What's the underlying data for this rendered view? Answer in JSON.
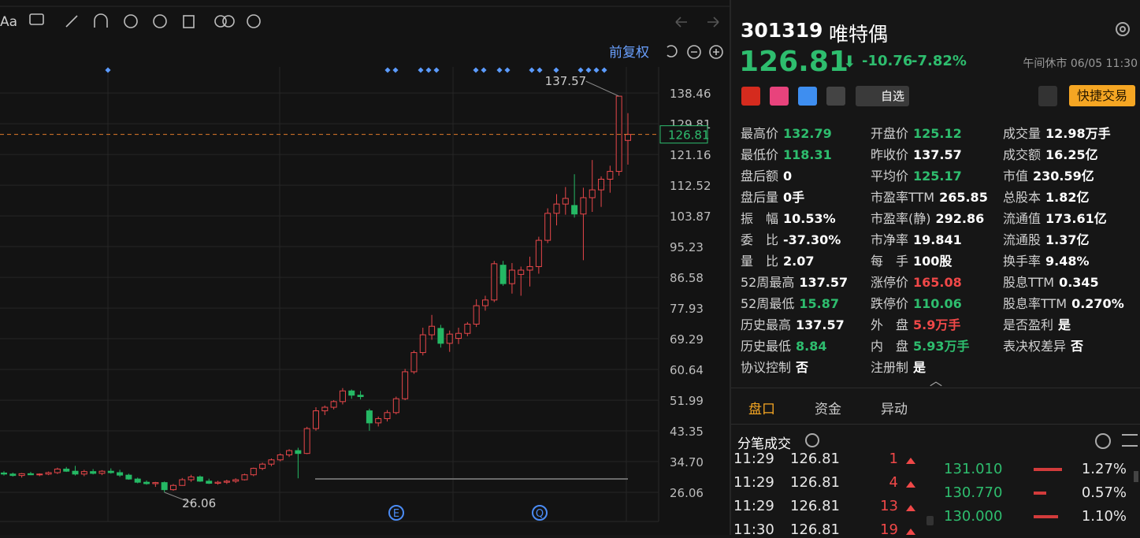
{
  "toolbar": {
    "font_button": "Aa",
    "adjust": "前复权"
  },
  "chart": {
    "type": "candlestick",
    "ylim": [
      18.3,
      145.8
    ],
    "yticks": [
      138.46,
      129.81,
      121.16,
      112.52,
      103.87,
      95.23,
      86.58,
      77.93,
      69.29,
      60.64,
      51.99,
      43.35,
      {
        "value": 34.7,
        "label": "34.70"
      },
      26.06
    ],
    "last": {
      "value": 126.81,
      "label": "126.81"
    },
    "annotations": [
      {
        "value": 137.57,
        "label": "137.57"
      },
      {
        "value": 26.06,
        "label": "26.06"
      }
    ],
    "events": [
      "E",
      "Q"
    ],
    "up_color": "#e8474a",
    "down_color": "#25b864",
    "candles": [
      [
        31.5,
        32,
        30.8,
        31.2
      ],
      [
        31.2,
        31.6,
        30.5,
        30.8
      ],
      [
        30.8,
        31.5,
        30.2,
        31.3
      ],
      [
        31.3,
        31.8,
        30.9,
        31
      ],
      [
        31,
        31.4,
        30.6,
        31.2
      ],
      [
        31.2,
        31.9,
        30.9,
        31.6
      ],
      [
        31.6,
        33,
        31.2,
        32.6
      ],
      [
        32.6,
        33.2,
        31.8,
        32
      ],
      [
        32,
        33.5,
        30.8,
        31.2
      ],
      [
        31.2,
        32.4,
        30.6,
        31.9
      ],
      [
        31.9,
        32.6,
        31.1,
        31.4
      ],
      [
        31.4,
        32.3,
        30.9,
        32
      ],
      [
        32,
        32.8,
        31.3,
        31.6
      ],
      [
        31.6,
        32.4,
        30.4,
        30.9
      ],
      [
        30.9,
        31.3,
        29.6,
        29.8
      ],
      [
        29.8,
        30.2,
        28.6,
        28.9
      ],
      [
        28.9,
        29.4,
        28.2,
        28.5
      ],
      [
        28.5,
        29,
        27.6,
        28.8
      ],
      [
        28.8,
        29.1,
        26.06,
        26.8
      ],
      [
        26.8,
        28.4,
        26.5,
        28
      ],
      [
        28,
        30.1,
        27.9,
        29.6
      ],
      [
        29.6,
        31,
        29,
        30.4
      ],
      [
        30.4,
        30.8,
        29,
        29.2
      ],
      [
        29.2,
        29.9,
        28.4,
        28.6
      ],
      [
        28.6,
        29.3,
        28.2,
        28.9
      ],
      [
        28.9,
        29.6,
        28.4,
        29.2
      ],
      [
        29.2,
        30,
        28.7,
        29.6
      ],
      [
        29.6,
        31.3,
        29.4,
        31
      ],
      [
        31,
        33,
        30.6,
        32.8
      ],
      [
        32.8,
        34.4,
        32.3,
        34
      ],
      [
        34,
        35.6,
        33.4,
        35.2
      ],
      [
        35.2,
        37,
        34.8,
        36.6
      ],
      [
        36.6,
        38.2,
        36,
        37.8
      ],
      [
        37.8,
        38.6,
        30,
        37
      ],
      [
        37,
        44.5,
        36.8,
        44
      ],
      [
        44,
        50,
        43.4,
        49
      ],
      [
        49,
        50.5,
        47.8,
        50
      ],
      [
        50,
        52,
        49.4,
        51.6
      ],
      [
        51.6,
        55.4,
        50.8,
        54.6
      ],
      [
        54.6,
        55,
        52.4,
        53.4
      ],
      [
        53.4,
        54.6,
        52.2,
        53
      ],
      [
        49,
        49.6,
        43.4,
        45.6
      ],
      [
        45.6,
        47.4,
        44.6,
        46.8
      ],
      [
        46.8,
        49.2,
        46,
        48.5
      ],
      [
        48.5,
        53,
        48,
        52.4
      ],
      [
        52.4,
        60.8,
        52,
        60
      ],
      [
        60,
        66,
        59.4,
        65.4
      ],
      [
        65.4,
        72.4,
        64.6,
        70.4
      ],
      [
        70.4,
        76,
        69,
        72.8
      ],
      [
        72.2,
        73.2,
        66.8,
        68
      ],
      [
        68,
        71.6,
        65.6,
        70.6
      ],
      [
        69.4,
        72.4,
        67.8,
        70.8
      ],
      [
        70.8,
        74,
        70,
        73.4
      ],
      [
        73.4,
        80.4,
        72.6,
        78.6
      ],
      [
        78.6,
        81.4,
        77.2,
        80.2
      ],
      [
        80.2,
        91.2,
        79.6,
        90.4
      ],
      [
        90,
        91.2,
        84.2,
        84.8
      ],
      [
        84.8,
        90.6,
        82,
        88.6
      ],
      [
        87.4,
        89.6,
        81.4,
        88.6
      ],
      [
        88.6,
        92.4,
        84,
        89.6
      ],
      [
        89.6,
        98,
        87.6,
        97
      ],
      [
        97,
        106,
        96.2,
        104.6
      ],
      [
        104.6,
        110,
        101.2,
        107.2
      ],
      [
        107.2,
        112,
        104.2,
        108.8
      ],
      [
        106.8,
        115.6,
        103.4,
        104.4
      ],
      [
        104.4,
        111.8,
        91.4,
        109
      ],
      [
        109,
        119.6,
        105,
        111.2
      ],
      [
        111.2,
        115,
        106.4,
        114.2
      ],
      [
        114.2,
        118,
        110.4,
        116.4
      ],
      [
        116.4,
        137.57,
        115.2,
        137.57
      ],
      [
        125.12,
        132.79,
        118.31,
        126.81
      ]
    ]
  },
  "header": {
    "code": "301319",
    "name": "唯特偶",
    "price": "126.81",
    "arrow": "⬇",
    "change": "-10.76",
    "change_pct": "-7.82%",
    "status": "午间休市 06/05 11:30",
    "watch": "自选",
    "trade": "快捷交易"
  },
  "stats": [
    [
      {
        "label": "最高价",
        "value": "132.79",
        "color": "#2ebd6e"
      },
      {
        "label": "开盘价",
        "value": "125.12",
        "color": "#2ebd6e"
      },
      {
        "label": "成交量",
        "value": "12.98万手",
        "color": "#ffffff"
      }
    ],
    [
      {
        "label": "最低价",
        "value": "118.31",
        "color": "#2ebd6e"
      },
      {
        "label": "昨收价",
        "value": "137.57",
        "color": "#ffffff"
      },
      {
        "label": "成交额",
        "value": "16.25亿",
        "color": "#ffffff"
      }
    ],
    [
      {
        "label": "盘后额",
        "value": "0",
        "color": "#ffffff"
      },
      {
        "label": "平均价",
        "value": "125.17",
        "color": "#2ebd6e"
      },
      {
        "label": "市值",
        "value": "230.59亿",
        "color": "#ffffff"
      }
    ],
    [
      {
        "label": "盘后量",
        "value": "0手",
        "color": "#ffffff"
      },
      {
        "label": "市盈率TTM",
        "value": "265.85",
        "color": "#ffffff"
      },
      {
        "label": "总股本",
        "value": "1.82亿",
        "color": "#ffffff"
      }
    ],
    [
      {
        "label": "振　幅",
        "value": "10.53%",
        "color": "#ffffff"
      },
      {
        "label": "市盈率(静)",
        "value": "292.86",
        "color": "#ffffff"
      },
      {
        "label": "流通值",
        "value": "173.61亿",
        "color": "#ffffff"
      }
    ],
    [
      {
        "label": "委　比",
        "value": "-37.30%",
        "color": "#ffffff"
      },
      {
        "label": "市净率",
        "value": "19.841",
        "color": "#ffffff"
      },
      {
        "label": "流通股",
        "value": "1.37亿",
        "color": "#ffffff"
      }
    ],
    [
      {
        "label": "量　比",
        "value": "2.07",
        "color": "#ffffff"
      },
      {
        "label": "每　手",
        "value": "100股",
        "color": "#ffffff"
      },
      {
        "label": "换手率",
        "value": "9.48%",
        "color": "#ffffff"
      }
    ],
    [
      {
        "label": "52周最高",
        "value": "137.57",
        "color": "#ffffff"
      },
      {
        "label": "涨停价",
        "value": "165.08",
        "color": "#f04848"
      },
      {
        "label": "股息TTM",
        "value": "0.345",
        "color": "#ffffff"
      }
    ],
    [
      {
        "label": "52周最低",
        "value": "15.87",
        "color": "#2ebd6e"
      },
      {
        "label": "跌停价",
        "value": "110.06",
        "color": "#2ebd6e"
      },
      {
        "label": "股息率TTM",
        "value": "0.270%",
        "color": "#ffffff"
      }
    ],
    [
      {
        "label": "历史最高",
        "value": "137.57",
        "color": "#ffffff"
      },
      {
        "label": "外　盘",
        "value": "5.9万手",
        "color": "#f04848"
      },
      {
        "label": "是否盈利",
        "value": "是",
        "color": "#ffffff"
      }
    ],
    [
      {
        "label": "历史最低",
        "value": "8.84",
        "color": "#2ebd6e"
      },
      {
        "label": "内　盘",
        "value": "5.93万手",
        "color": "#2ebd6e"
      },
      {
        "label": "表决权差异",
        "value": "否",
        "color": "#ffffff"
      }
    ],
    [
      {
        "label": "协议控制",
        "value": "否",
        "color": "#ffffff"
      },
      {
        "label": "注册制",
        "value": "是",
        "color": "#ffffff"
      }
    ]
  ],
  "tabs": [
    "盘口",
    "资金",
    "异动"
  ],
  "ticks_title": "分笔成交",
  "trades": [
    {
      "time": "11:29",
      "price": "126.81",
      "vol": "1"
    },
    {
      "time": "11:29",
      "price": "126.81",
      "vol": "4"
    },
    {
      "time": "11:29",
      "price": "126.81",
      "vol": "13"
    },
    {
      "time": "11:30",
      "price": "126.81",
      "vol": "19"
    }
  ],
  "orders": [
    {
      "price": "131.010",
      "pct": 1.27,
      "pct_label": "1.27%"
    },
    {
      "price": "130.770",
      "pct": 0.57,
      "pct_label": "0.57%"
    },
    {
      "price": "130.000",
      "pct": 1.1,
      "pct_label": "1.10%"
    }
  ]
}
